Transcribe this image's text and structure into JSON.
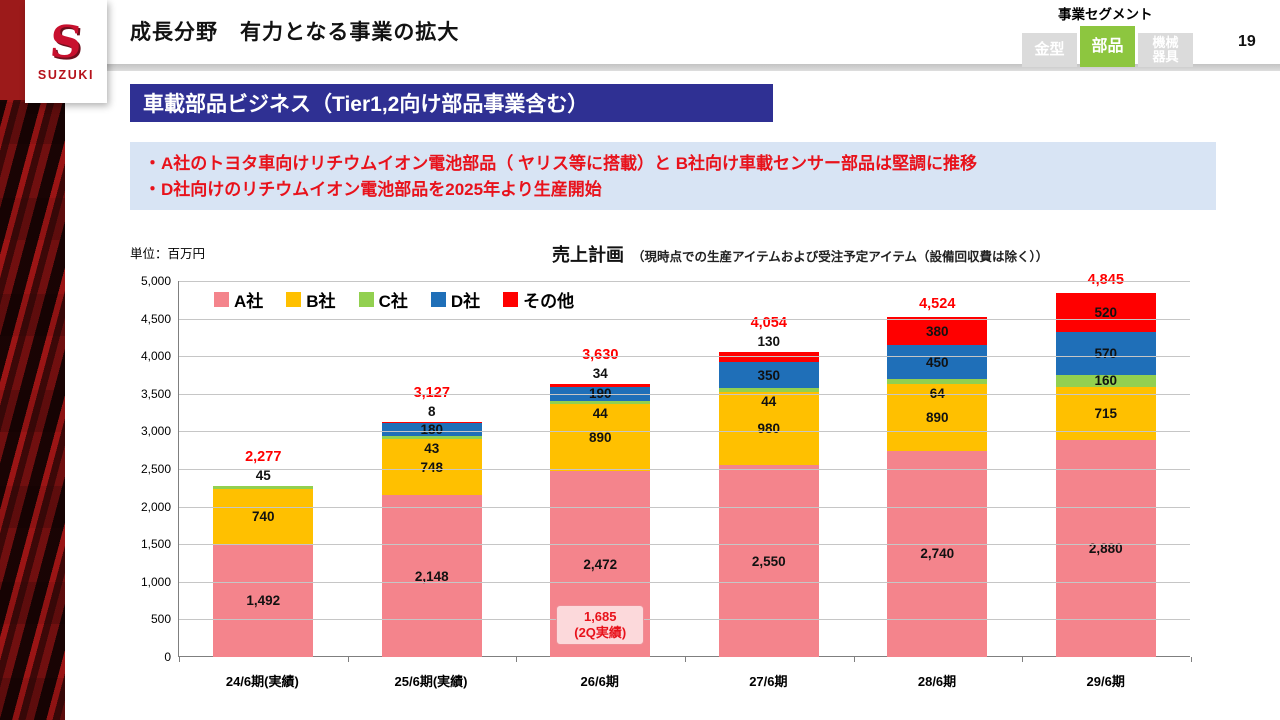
{
  "header": {
    "logo_s": "S",
    "logo_text": "SUZUKI",
    "title": "成長分野　有力となる事業の拡大",
    "segment_label": "事業セグメント",
    "tabs": [
      {
        "label": "金型",
        "active": false
      },
      {
        "label": "部品",
        "active": true
      },
      {
        "label": "機械器具",
        "active": false
      }
    ],
    "page_number": "19"
  },
  "banner": {
    "title": "車載部品ビジネス（Tier1,2向け部品事業含む）"
  },
  "callout": {
    "line1": "・A社のトヨタ車向けリチウムイオン電池部品（ ヤリス等に搭載）と B社向け車載センサー部品は堅調に推移",
    "line2": "・D社向けのリチウムイオン電池部品を2025年より生産開始"
  },
  "chart_header": {
    "unit_label": "単位：百万円",
    "title": "売上計画",
    "subtitle": "（現時点での生産アイテムおよび受注予定アイテム（設備回収費は除く））"
  },
  "colors": {
    "banner_bg": "#2f3093",
    "callout_bg": "#d8e4f4",
    "callout_text": "#e8121b",
    "tab_active_green": "#8dc63f",
    "tab_inactive_gray": "#dbdbdb",
    "logo_red": "#c8102e",
    "total_label_red": "#ff0000"
  },
  "chart_data": {
    "type": "bar",
    "stacked": true,
    "title": "売上計画",
    "subtitle": "（現時点での生産アイテムおよび受注予定アイテム（設備回収費は除く））",
    "unit": "百万円",
    "ylim": [
      0,
      5000
    ],
    "ytick_step": 500,
    "grid": true,
    "legend_position": "top-left-inside",
    "series": [
      {
        "name": "A社",
        "color": "#f4848c"
      },
      {
        "name": "B社",
        "color": "#ffc000"
      },
      {
        "name": "C社",
        "color": "#92d050"
      },
      {
        "name": "D社",
        "color": "#1f6fb8"
      },
      {
        "name": "その他",
        "color": "#ff0000"
      }
    ],
    "categories": [
      "24/6期(実績)",
      "25/6期(実績)",
      "26/6期",
      "27/6期",
      "28/6期",
      "29/6期"
    ],
    "totals": [
      2277,
      3127,
      3630,
      4054,
      4524,
      4845
    ],
    "values": [
      [
        1492,
        740,
        45,
        0,
        0
      ],
      [
        2148,
        748,
        43,
        180,
        8
      ],
      [
        2472,
        890,
        44,
        190,
        34
      ],
      [
        2550,
        980,
        44,
        350,
        130
      ],
      [
        2740,
        890,
        64,
        450,
        380
      ],
      [
        2880,
        715,
        160,
        570,
        520
      ]
    ],
    "label_pos": [
      [
        "in",
        "in",
        "above",
        null,
        null
      ],
      [
        "in",
        "in",
        "below",
        "in",
        "above"
      ],
      [
        "in",
        "in",
        "below",
        "in",
        "above"
      ],
      [
        "in",
        "in",
        "below",
        "in",
        "above"
      ],
      [
        "in",
        "in",
        "below",
        "in",
        "in"
      ],
      [
        "in",
        "in",
        "in",
        "in",
        "in"
      ]
    ],
    "annotations": [
      {
        "bar_index": 2,
        "lines": [
          "1,685",
          "(2Q実績)"
        ]
      }
    ]
  }
}
